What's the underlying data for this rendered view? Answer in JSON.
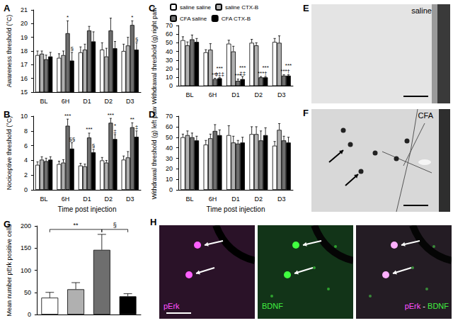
{
  "chart_data": [
    {
      "type": "bar",
      "title": "A",
      "ylabel": "Awareness threshold (°C)",
      "categories": [
        "BL",
        "6H",
        "D1",
        "D2",
        "D3"
      ],
      "ylim": [
        15,
        21
      ],
      "yticks": [
        15,
        16,
        17,
        18,
        19,
        20,
        21
      ],
      "grid": false,
      "series": [
        {
          "color": "#ffffff",
          "values": [
            17.7,
            17.5,
            17.9,
            18.1,
            18.0
          ],
          "errors": [
            0.3,
            0.3,
            0.4,
            0.5,
            0.5
          ],
          "annotations": [
            null,
            null,
            null,
            null,
            null
          ]
        },
        {
          "color": "#b0b0b0",
          "values": [
            17.8,
            17.7,
            18.1,
            17.6,
            18.4
          ],
          "errors": [
            0.2,
            0.3,
            0.4,
            0.6,
            0.6
          ],
          "annotations": [
            null,
            null,
            null,
            null,
            null
          ]
        },
        {
          "color": "#6e6e6e",
          "values": [
            17.4,
            19.3,
            19.5,
            19.5,
            19.9
          ],
          "errors": [
            0.3,
            0.9,
            0.3,
            0.9,
            0.3
          ],
          "annotations": [
            null,
            "*",
            null,
            null,
            "*"
          ]
        },
        {
          "color": "#000000",
          "values": [
            17.6,
            17.3,
            18.7,
            18.2,
            18.1
          ],
          "errors": [
            0.3,
            0.6,
            0.7,
            0.5,
            0.5
          ],
          "annotations": [
            null,
            "§",
            null,
            null,
            "§"
          ]
        }
      ]
    },
    {
      "type": "bar",
      "title": "B",
      "ylabel": "Nociceptive threshold (°C)",
      "xlabel": "Time post injection",
      "categories": [
        "BL",
        "6H",
        "D1",
        "D2",
        "D3"
      ],
      "ylim": [
        0,
        10
      ],
      "yticks": [
        0,
        2,
        4,
        6,
        8,
        10
      ],
      "grid": false,
      "series": [
        {
          "color": "#ffffff",
          "values": [
            3.4,
            3.5,
            3.3,
            4.0,
            4.1
          ],
          "errors": [
            0.4,
            0.4,
            0.3,
            0.4,
            0.5
          ],
          "annotations": [
            null,
            null,
            null,
            null,
            null
          ]
        },
        {
          "color": "#b0b0b0",
          "values": [
            4.1,
            3.7,
            3.2,
            3.7,
            4.4
          ],
          "errors": [
            0.4,
            0.4,
            0.3,
            0.3,
            0.8
          ],
          "annotations": [
            null,
            null,
            null,
            null,
            null
          ]
        },
        {
          "color": "#6e6e6e",
          "values": [
            3.9,
            8.7,
            7.1,
            9.1,
            8.5
          ],
          "errors": [
            0.4,
            0.9,
            0.6,
            0.6,
            0.6
          ],
          "annotations": [
            null,
            "***",
            "***",
            "***",
            "**"
          ]
        },
        {
          "color": "#000000",
          "values": [
            4.1,
            5.6,
            5.1,
            6.9,
            7.2
          ],
          "errors": [
            0.4,
            0.8,
            0.4,
            0.6,
            0.8
          ],
          "annotations": [
            null,
            "§§",
            "§",
            "*\n‡",
            "‡"
          ]
        }
      ]
    },
    {
      "type": "bar",
      "title": "C",
      "ylabel": "Withdrawal threshold (g) right paw",
      "categories": [
        "BL",
        "6H",
        "D1",
        "D2",
        "D3"
      ],
      "ylim": [
        0,
        70
      ],
      "yticks": [
        0,
        10,
        20,
        30,
        40,
        50,
        60,
        70
      ],
      "grid": false,
      "legend": "top",
      "series": [
        {
          "name": "saline saline",
          "color": "#ffffff",
          "values": [
            53,
            39,
            49,
            50,
            51
          ],
          "errors": [
            4,
            3,
            4,
            4,
            4
          ],
          "annotations": [
            null,
            null,
            null,
            null,
            null
          ]
        },
        {
          "name": "saline CTX-B",
          "color": "#b0b0b0",
          "values": [
            47,
            42,
            40,
            47,
            50
          ],
          "errors": [
            4,
            7,
            6,
            3,
            8
          ],
          "annotations": [
            null,
            null,
            null,
            null,
            null
          ]
        },
        {
          "name": "CFA saline",
          "color": "#6e6e6e",
          "values": [
            54,
            8,
            6,
            10,
            12
          ],
          "errors": [
            5,
            1,
            2,
            1,
            1
          ],
          "annotations": [
            null,
            "***",
            "***",
            "***",
            "***"
          ]
        },
        {
          "name": "CFA CTX-B",
          "color": "#000000",
          "values": [
            51,
            9,
            8,
            10,
            12
          ],
          "errors": [
            4,
            1,
            3,
            1,
            1
          ],
          "annotations": [
            null,
            "***\n‡‡‡",
            "***\n‡‡",
            "***\n†",
            "***\n†"
          ]
        }
      ]
    },
    {
      "type": "bar",
      "title": "D",
      "ylabel": "Withdrawal threshold (g) left paw",
      "xlabel": "Time post injection",
      "categories": [
        "BL",
        "6H",
        "D1",
        "D2",
        "D3"
      ],
      "ylim": [
        0,
        70
      ],
      "yticks": [
        0,
        10,
        20,
        30,
        40,
        50,
        60,
        70
      ],
      "grid": false,
      "series": [
        {
          "color": "#ffffff",
          "values": [
            50,
            43,
            52,
            53,
            42
          ],
          "errors": [
            3,
            4,
            9,
            7,
            4
          ],
          "annotations": [
            null,
            null,
            null,
            null,
            null
          ]
        },
        {
          "color": "#b0b0b0",
          "values": [
            52,
            49,
            45,
            53,
            57
          ],
          "errors": [
            4,
            4,
            6,
            7,
            6
          ],
          "annotations": [
            null,
            null,
            null,
            null,
            null
          ]
        },
        {
          "color": "#6e6e6e",
          "values": [
            50,
            56,
            44,
            47,
            47
          ],
          "errors": [
            4,
            6,
            3,
            9,
            4
          ],
          "annotations": [
            null,
            null,
            null,
            null,
            null
          ]
        },
        {
          "color": "#000000",
          "values": [
            47,
            52,
            45,
            52,
            45
          ],
          "errors": [
            4,
            5,
            5,
            7,
            5
          ],
          "annotations": [
            null,
            null,
            null,
            null,
            null
          ]
        }
      ]
    },
    {
      "type": "bar",
      "title": "G",
      "ylabel": "Mean number pErk positive cells",
      "categories": [
        null,
        null,
        null,
        null
      ],
      "ylim": [
        0,
        200
      ],
      "yticks": [
        0,
        50,
        100,
        150,
        200
      ],
      "grid": false,
      "values": [
        38,
        57,
        146,
        41
      ],
      "errors": [
        12,
        15,
        35,
        6
      ],
      "colors": [
        "#ffffff",
        "#b0b0b0",
        "#6e6e6e",
        "#000000"
      ],
      "comparisons": [
        {
          "from": 0,
          "to": 2,
          "text": "**"
        },
        {
          "from": 2,
          "to": 3,
          "text": "§"
        }
      ]
    }
  ],
  "images": [
    {
      "title": "E",
      "label": "saline"
    },
    {
      "title": "F",
      "label": "CFA"
    },
    {
      "title": "H",
      "labels": [
        "pErk",
        "BDNF",
        "pErk - BDNF"
      ]
    }
  ]
}
